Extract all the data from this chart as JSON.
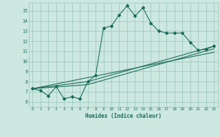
{
  "xlabel": "Humidex (Indice chaleur)",
  "bg_color": "#cce8e0",
  "grid_color": "#a0c8be",
  "line_color": "#1a6b5a",
  "xlim": [
    -0.5,
    23.5
  ],
  "ylim": [
    5.5,
    15.8
  ],
  "xticks": [
    0,
    1,
    2,
    3,
    4,
    5,
    6,
    7,
    8,
    9,
    10,
    11,
    12,
    13,
    14,
    15,
    16,
    17,
    18,
    19,
    20,
    21,
    22,
    23
  ],
  "yticks": [
    6,
    7,
    8,
    9,
    10,
    11,
    12,
    13,
    14,
    15
  ],
  "series1_x": [
    0,
    1,
    2,
    3,
    4,
    5,
    6,
    7,
    8,
    9,
    10,
    11,
    12,
    13,
    14,
    15,
    16,
    17,
    18,
    19,
    20,
    21,
    22,
    23
  ],
  "series1_y": [
    7.3,
    7.1,
    6.6,
    7.5,
    6.3,
    6.5,
    6.3,
    8.0,
    8.6,
    13.3,
    13.5,
    14.6,
    15.5,
    14.5,
    15.3,
    13.8,
    13.0,
    12.8,
    12.8,
    12.8,
    11.9,
    11.1,
    11.2,
    11.5
  ],
  "series2_x": [
    0,
    7,
    23
  ],
  "series2_y": [
    7.3,
    8.0,
    11.5
  ],
  "series3_x": [
    0,
    7,
    23
  ],
  "series3_y": [
    7.3,
    7.7,
    11.25
  ],
  "series4_x": [
    0,
    23
  ],
  "series4_y": [
    7.3,
    10.9
  ]
}
